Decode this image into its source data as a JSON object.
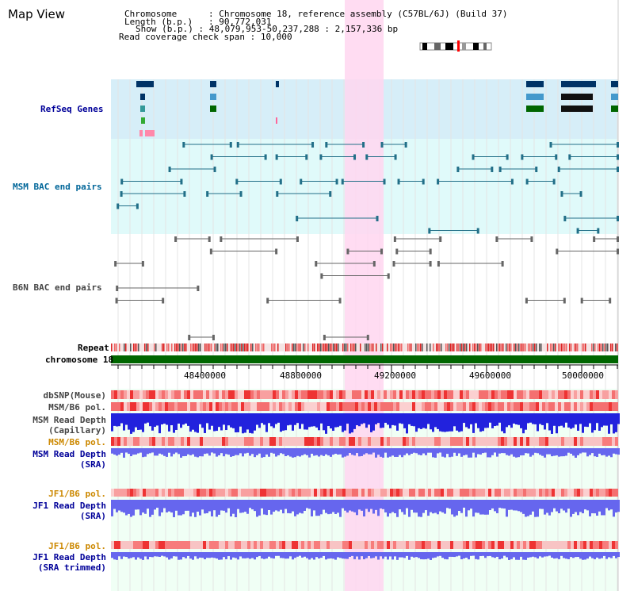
{
  "page": {
    "title": "Map View"
  },
  "info": {
    "chromosome_key": "Chromosome",
    "chromosome_value": "Chromosome 18, reference assembly (C57BL/6J) (Build 37)",
    "length_key": "Length (b.p.)",
    "length_value": "90,772,031",
    "show_key": "Show (b.p.)",
    "show_value": "48,079,953-50,237,288 : 2,157,336 bp",
    "coverage_key": "Read coverage check span",
    "coverage_value": "10,000"
  },
  "tracks": {
    "refseq": "RefSeq Genes",
    "msm_bac": "MSM BAC end pairs",
    "b6n_bac": "B6N BAC end pairs",
    "repeat": "Repeat",
    "chromosome": "chromosome 18",
    "dbsnp": "dbSNP(Mouse)",
    "msm_b6_pol": "MSM/B6 pol.",
    "msm_read_depth_cap_1": "MSM Read Depth",
    "msm_read_depth_cap_2": "(Capillary)",
    "msm_b6_pol_2": "MSM/B6 pol.",
    "msm_read_depth_sra_1": "MSM Read Depth",
    "msm_read_depth_sra_2": "(SRA)",
    "jf1_b6_pol": "JF1/B6 pol.",
    "jf1_read_depth_1": "JF1 Read Depth",
    "jf1_read_depth_2": "(SRA)",
    "jf1_b6_pol_2": "JF1/B6 pol.",
    "jf1_read_depth_trim_1": "JF1 Read Depth",
    "jf1_read_depth_trim_2": "(SRA trimmed)"
  },
  "axis": {
    "ticks": [
      "48400000",
      "48800000",
      "49200000",
      "49600000",
      "50000000"
    ]
  },
  "colors": {
    "refseq_label": "#000099",
    "msm_label": "#006699",
    "b6n_label": "#444444",
    "pol_label": "#cc8800",
    "depth_label": "#000099",
    "highlight": "#ffd6f0",
    "refseq_bg": "#d6eef8",
    "msm_bg": "#e0fafa",
    "chromosome_bar": "#006600"
  }
}
